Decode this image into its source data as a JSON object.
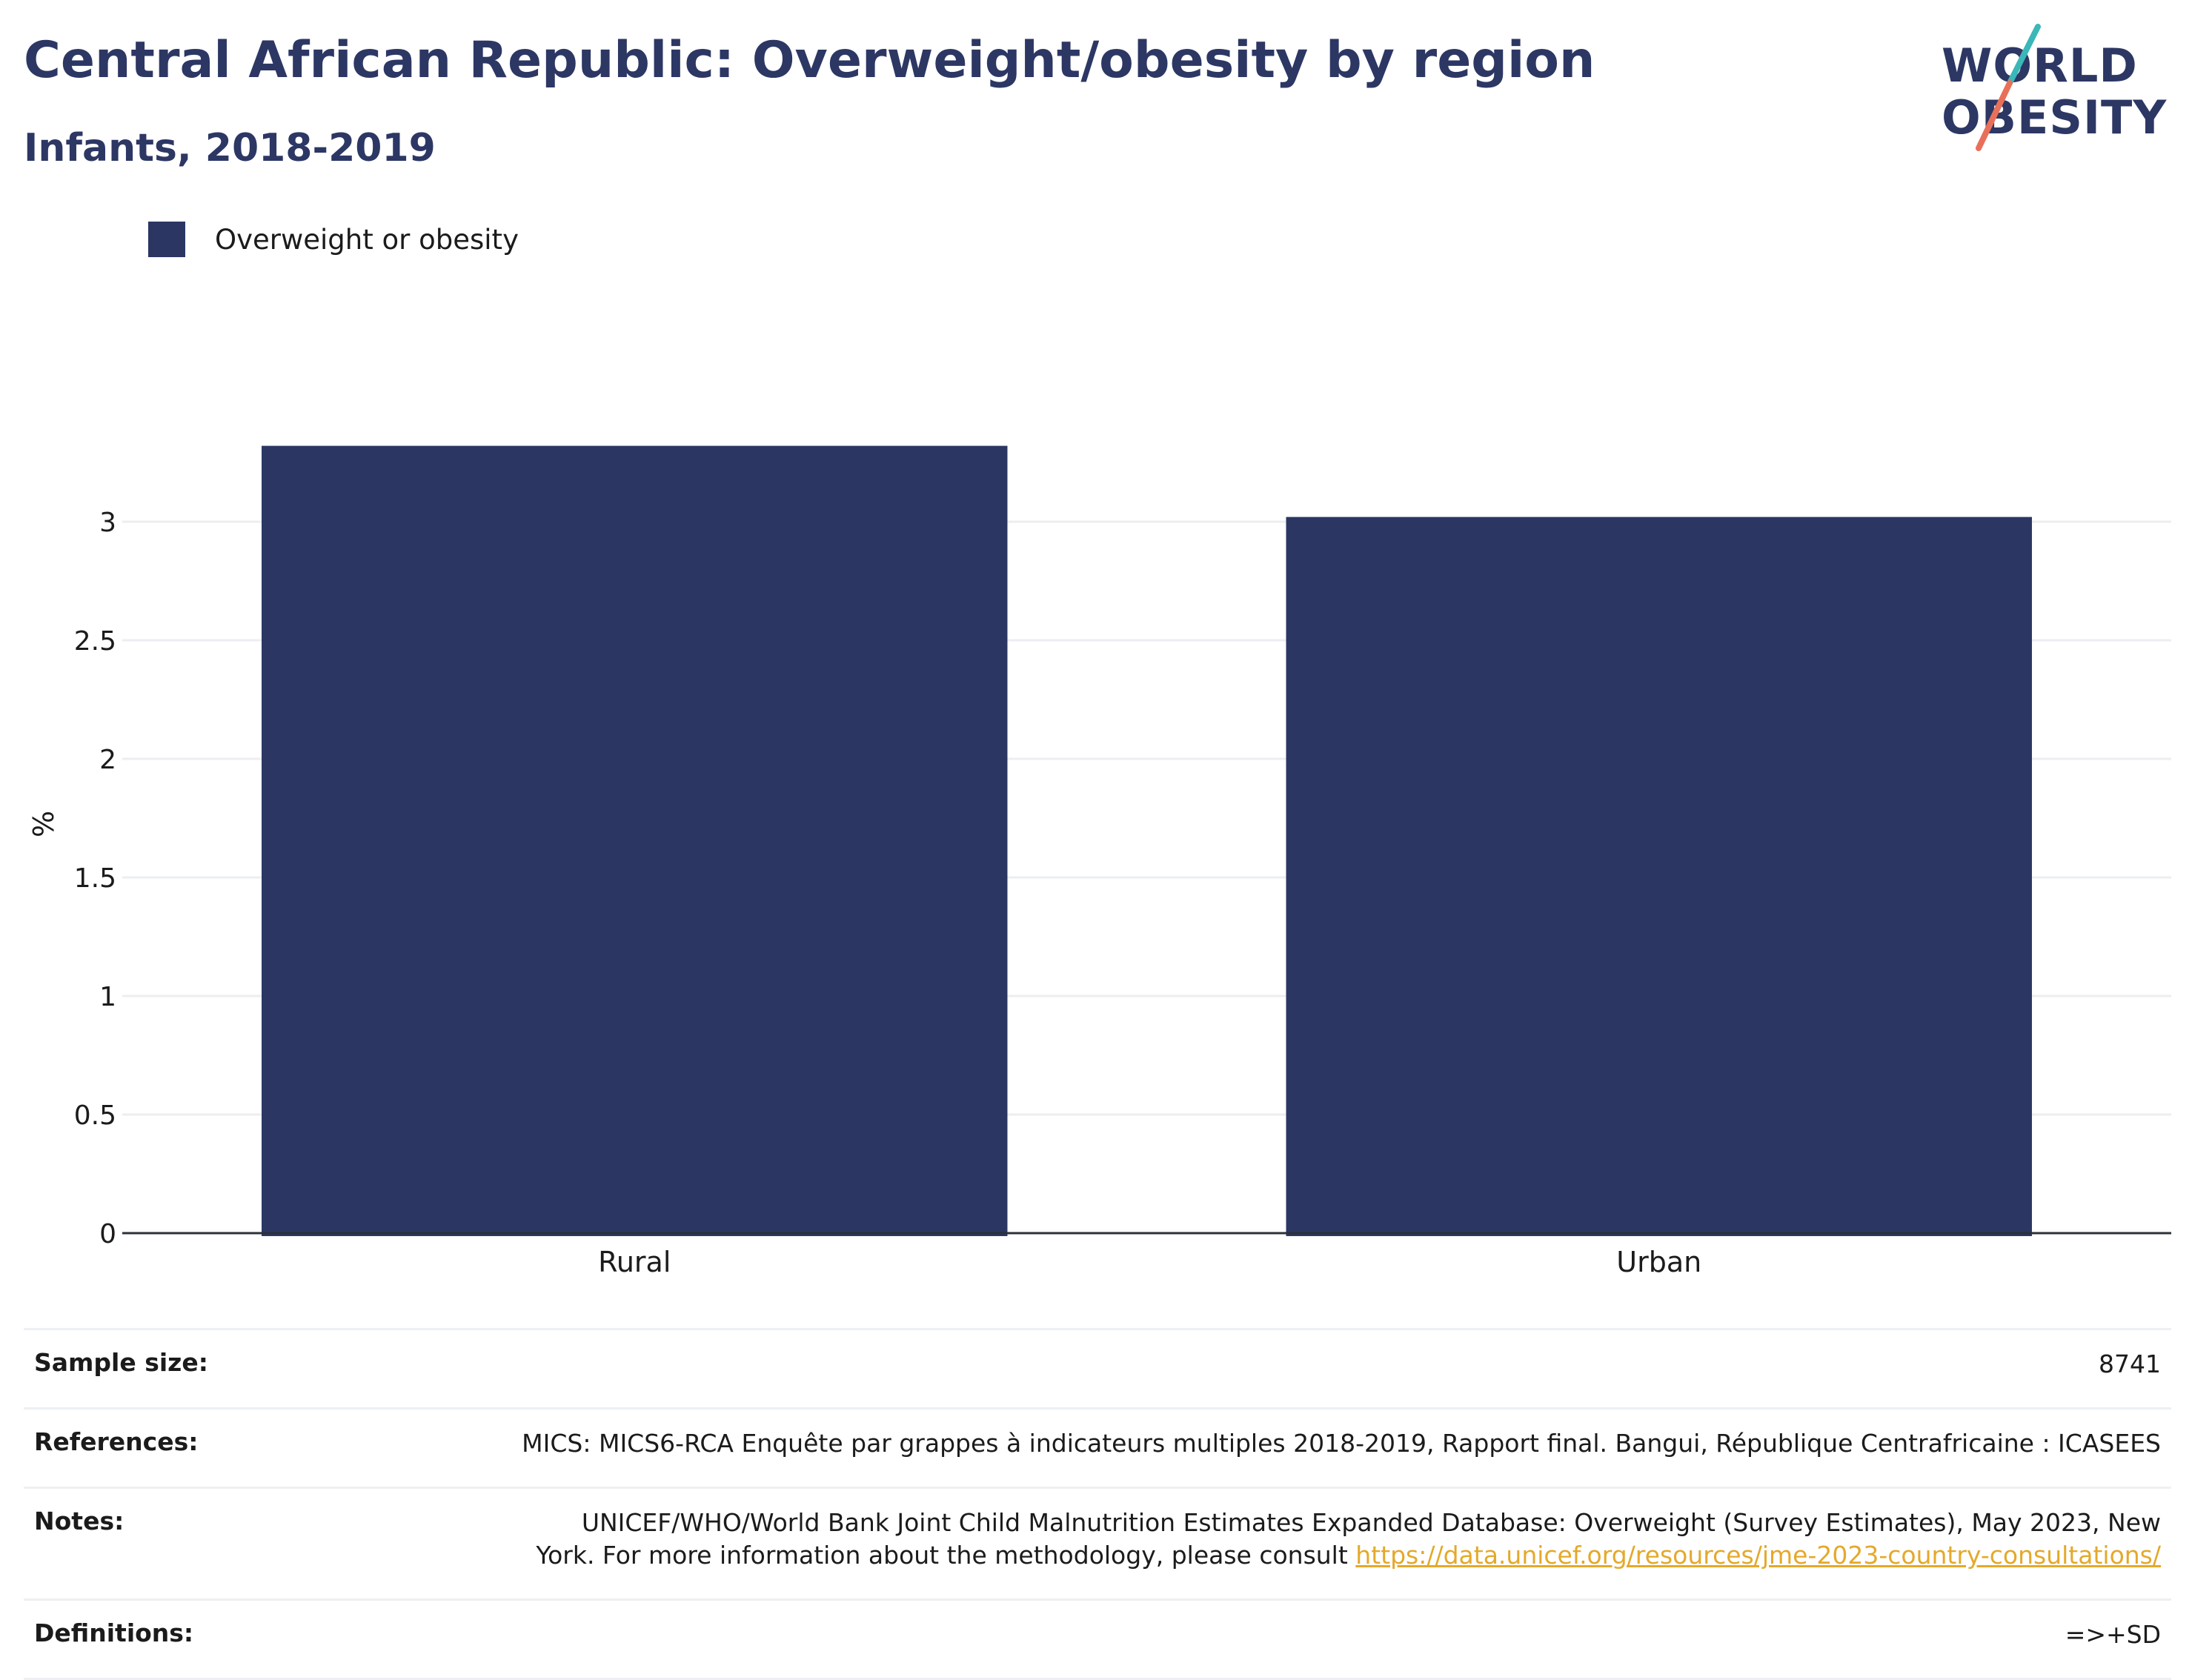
{
  "header": {
    "title": "Central African Republic: Overweight/obesity by region",
    "subtitle": "Infants, 2018-2019"
  },
  "logo": {
    "line1": "WORLD",
    "line2": "OBESITY",
    "colors": {
      "text": "#2c3764",
      "slash_teal": "#3bb7b8",
      "slash_coral": "#e8705a"
    }
  },
  "legend": {
    "label": "Overweight or obesity",
    "color": "#2b3663"
  },
  "chart_data": {
    "type": "bar",
    "categories": [
      "Rural",
      "Urban"
    ],
    "series": [
      {
        "name": "Overweight or obesity",
        "values": [
          3.32,
          3.02
        ],
        "color": "#2b3663"
      }
    ],
    "title": "Central African Republic: Overweight/obesity by region",
    "subtitle": "Infants, 2018-2019",
    "xlabel": "",
    "ylabel": "%",
    "ylim": [
      0,
      3.45
    ],
    "yticks": [
      0,
      0.5,
      1,
      1.5,
      2,
      2.5,
      3
    ],
    "ytick_labels": [
      "0",
      "0.5",
      "1",
      "1.5",
      "2",
      "2.5",
      "3"
    ],
    "grid": true,
    "legend_position": "top-left"
  },
  "info": {
    "sample_size_label": "Sample size:",
    "sample_size_value": "8741",
    "references_label": "References:",
    "references_value": "MICS: MICS6-RCA Enquête par grappes à indicateurs multiples 2018-2019, Rapport final. Bangui, République Centrafricaine : ICASEES",
    "notes_label": "Notes:",
    "notes_line1": "UNICEF/WHO/World Bank Joint Child Malnutrition Estimates Expanded Database: Overweight (Survey Estimates), May 2023, New",
    "notes_line2": "York. For more information about the methodology, please consult",
    "notes_link": "https://data.unicef.org/resources/jme-2023-country-consultations/",
    "definitions_label": "Definitions:",
    "definitions_value": "=>+SD"
  }
}
